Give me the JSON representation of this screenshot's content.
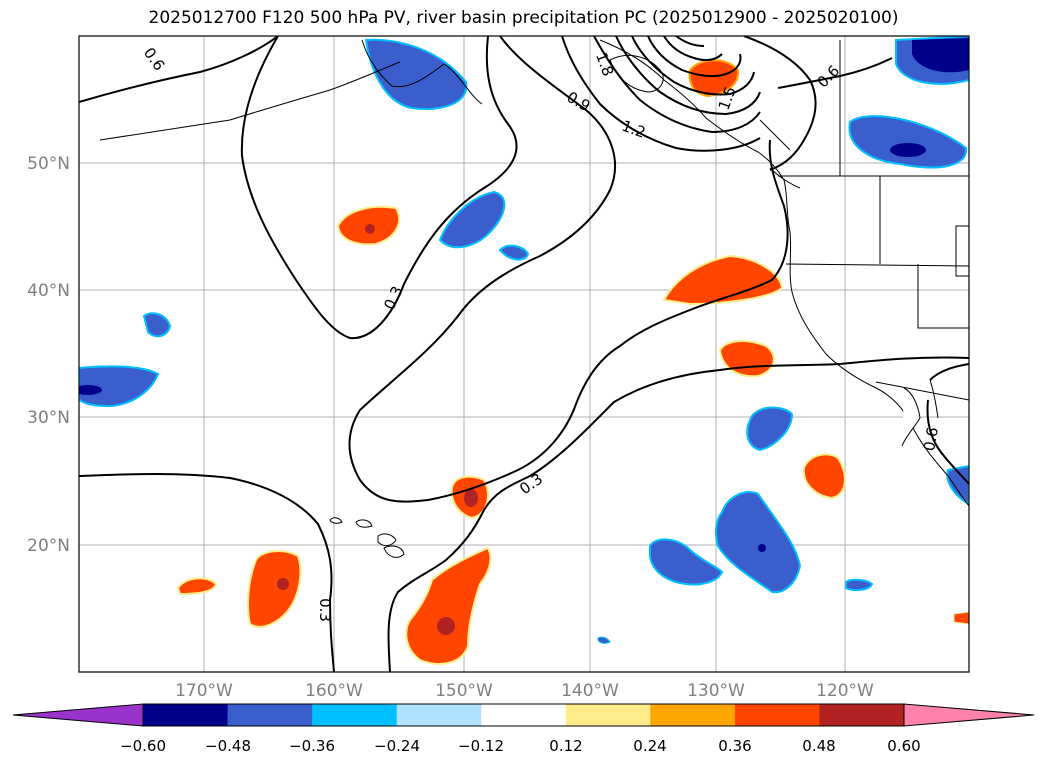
{
  "title": "2025012700 F120 500 hPa PV, river basin precipitation PC (2025012900 - 2025020100)",
  "map": {
    "lat_labels": [
      "50°N",
      "40°N",
      "30°N",
      "20°N"
    ],
    "lon_labels": [
      "170°W",
      "160°W",
      "150°W",
      "140°W",
      "130°W",
      "120°W"
    ],
    "contour_labels": [
      "0.6",
      "0.3",
      "0.3",
      "0.3",
      "0.9",
      "1.2",
      "1.5",
      "1.8",
      "0.6",
      "0.6"
    ],
    "colors": {
      "grid": "#b0b0b0",
      "axis_label": "#808080",
      "contour": "#000000"
    }
  },
  "colorbar": {
    "ticks": [
      "−0.60",
      "−0.48",
      "−0.36",
      "−0.24",
      "−0.12",
      "0.12",
      "0.24",
      "0.36",
      "0.48",
      "0.60"
    ],
    "colors": [
      "#9933cc",
      "#00008b",
      "#3a5fcd",
      "#00bfff",
      "#b0e2ff",
      "#ffffff",
      "#ffec8b",
      "#ffa500",
      "#ff4500",
      "#b22222",
      "#ff82ab"
    ]
  }
}
